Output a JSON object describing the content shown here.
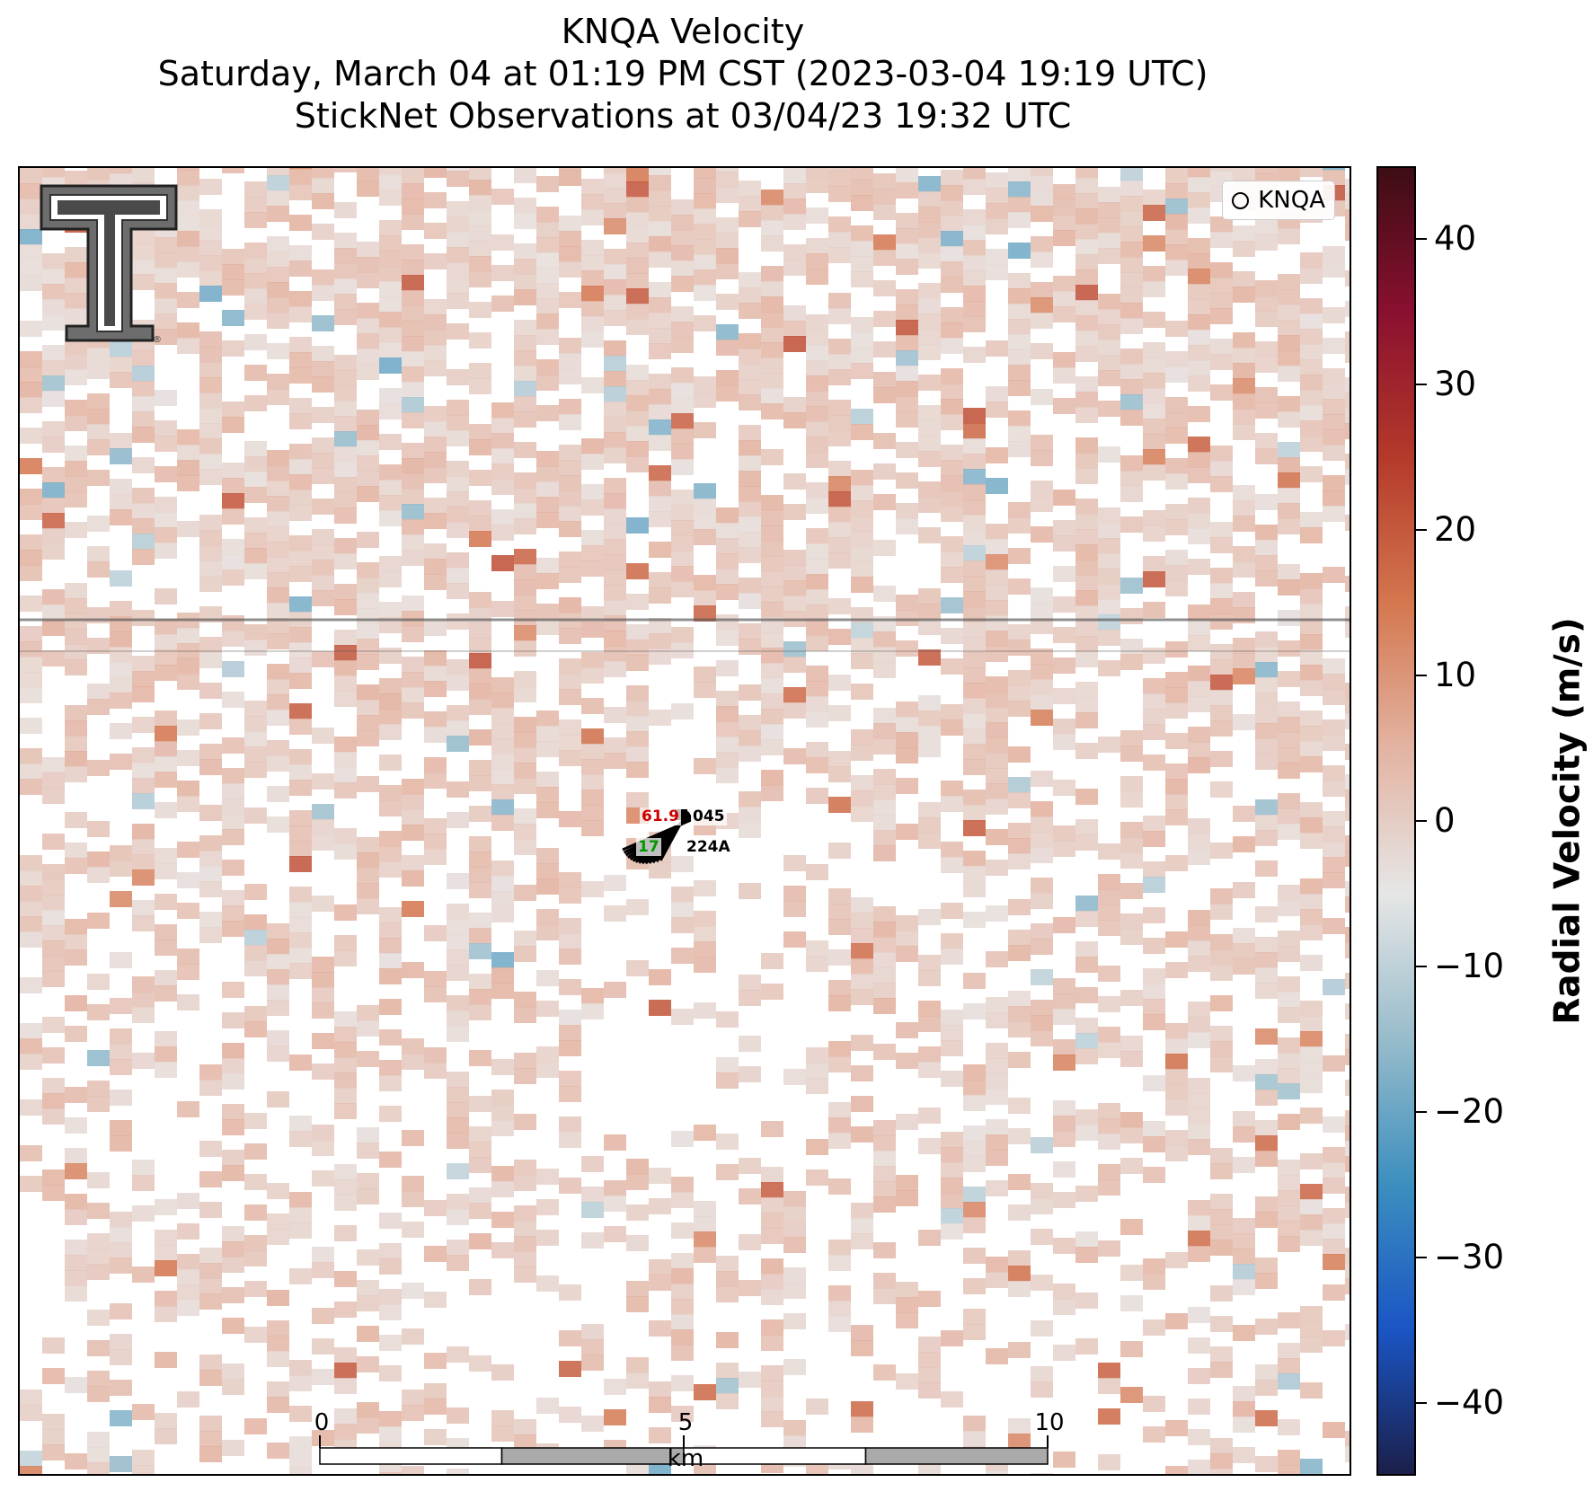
{
  "title": {
    "line1": "KNQA Velocity",
    "line2": "Saturday, March 04 at 01:19 PM CST (2023-03-04 19:19 UTC)",
    "line3": "StickNet Observations at 03/04/23 19:32 UTC"
  },
  "legend": {
    "label": "KNQA",
    "marker_color": "#ff0000"
  },
  "colorbar": {
    "label": "Radial Velocity (m/s)",
    "min": -45,
    "max": 45,
    "ticks": [
      "40",
      "30",
      "20",
      "10",
      "0",
      "−10",
      "−20",
      "−30",
      "−40"
    ],
    "tick_values": [
      40,
      30,
      20,
      10,
      0,
      -10,
      -20,
      -30,
      -40
    ],
    "colors": [
      "#1b1f4a",
      "#1a55c4",
      "#3c8fbf",
      "#98bccb",
      "#e6e6e6",
      "#e3b3a2",
      "#d4774f",
      "#b43a2a",
      "#8a1030",
      "#3d0d14"
    ]
  },
  "scalebar": {
    "ticks": [
      "0",
      "5",
      "10"
    ],
    "unit": "km"
  },
  "stations": [
    {
      "id": "045",
      "value": "61.9",
      "value_color": "#cc0000"
    },
    {
      "id": "224A",
      "value": "17",
      "value_color": "#009900"
    }
  ],
  "logo_icon": "double-t-logo-icon"
}
